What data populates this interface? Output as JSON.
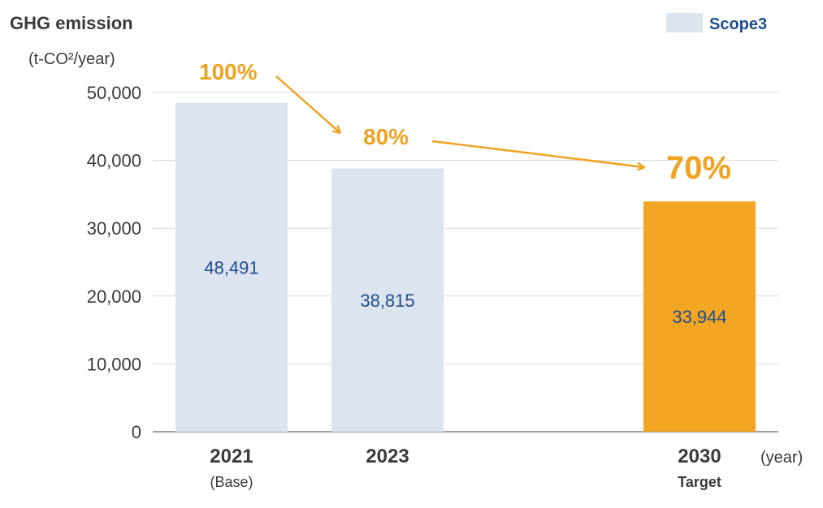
{
  "chart_data": {
    "type": "bar",
    "ylabel": "GHG emission",
    "yunit": "(t-CO²/year)",
    "xunit": "(year)",
    "categories": [
      "2021",
      "2023",
      "2030"
    ],
    "category_sublabels": [
      "(Base)",
      "",
      "Target"
    ],
    "values": [
      48491,
      38815,
      33944
    ],
    "value_labels": [
      "48,491",
      "38,815",
      "33,944"
    ],
    "ylim": [
      0,
      50000
    ],
    "yticks": [
      0,
      10000,
      20000,
      30000,
      40000,
      50000
    ],
    "ytick_labels": [
      "0",
      "10,000",
      "20,000",
      "30,000",
      "40,000",
      "50,000"
    ],
    "grid": true,
    "legend": {
      "label": "Scope3",
      "placement": "top-right"
    },
    "percent_annotations": [
      "100%",
      "80%",
      "70%"
    ],
    "colors": {
      "scope3": "#dbe4ef",
      "target": "#f2a623",
      "accent": "#f0a321",
      "value_text": "#1f4e8c",
      "grid": "#d9d9d9",
      "axis": "#7f7f7f"
    }
  }
}
